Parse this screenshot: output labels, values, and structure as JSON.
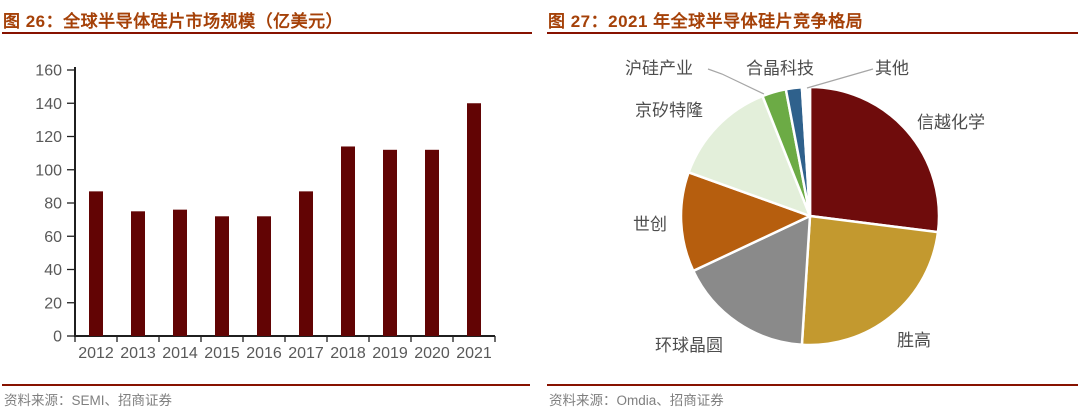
{
  "theme": {
    "title_color": "#A54108",
    "rule_color": "#871200",
    "source_color": "#7F7F7F",
    "axis_color": "#1F1F1F",
    "tick_label_color": "#595959",
    "pie_label_color": "#4D4D4D",
    "leader_line_color": "#A6A6A6"
  },
  "figures": {
    "fig26": {
      "title": "图 26：全球半导体硅片市场规模（亿美元）",
      "source": "资料来源：SEMI、招商证券"
    },
    "fig27": {
      "title": "图 27：2021 年全球半导体硅片竞争格局",
      "source": "资料来源：Omdia、招商证券"
    }
  },
  "chart_data": [
    {
      "type": "bar",
      "title": "全球半导体硅片市场规模（亿美元）",
      "categories": [
        "2012",
        "2013",
        "2014",
        "2015",
        "2016",
        "2017",
        "2018",
        "2019",
        "2020",
        "2021"
      ],
      "values": [
        87,
        75,
        76,
        72,
        72,
        87,
        114,
        112,
        112,
        140
      ],
      "xlabel": "",
      "ylabel": "",
      "ylim": [
        0,
        160
      ],
      "ytick_step": 20,
      "grid": false,
      "legend_position": "none",
      "bar_color": "#620404"
    },
    {
      "type": "pie",
      "title": "2021 年全球半导体硅片竞争格局",
      "labels": [
        "信越化学",
        "胜高",
        "环球晶圆",
        "世创",
        "京矽特隆",
        "沪硅产业",
        "合晶科技",
        "其他"
      ],
      "values": [
        27,
        24,
        17,
        12.5,
        13.5,
        3,
        2,
        1
      ],
      "unit": "percent-share-estimated",
      "colors": [
        "#6F0C0C",
        "#C3992F",
        "#8A8A8A",
        "#B65E0E",
        "#E3EFDA",
        "#6CAB45",
        "#2F618C",
        "#FFFFFF"
      ],
      "start_angle": "12-oclock",
      "direction": "clockwise",
      "legend_position": "labels-around-pie-with-leader-lines"
    }
  ]
}
